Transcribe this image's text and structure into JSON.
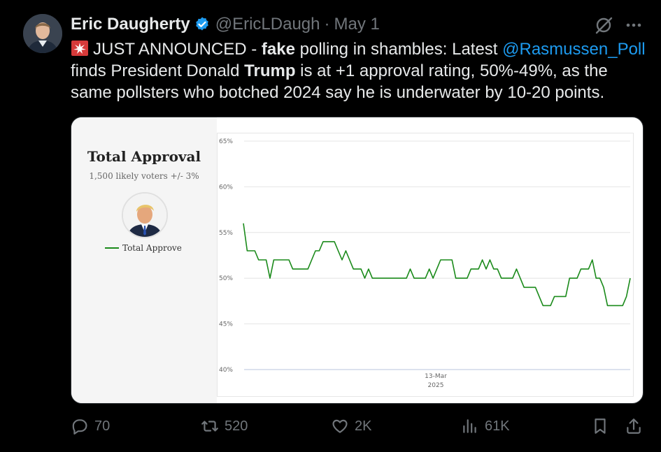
{
  "tweet": {
    "author_name": "Eric Daugherty",
    "handle": "@EricLDaugh",
    "separator": "·",
    "date": "May 1",
    "text_parts": {
      "intro": "JUST ANNOUNCED - ",
      "bold1": "fake",
      "mid1": " polling in shambles: Latest ",
      "mention": "@Rasmussen_Poll",
      "mid2": " finds President Donald ",
      "bold2": "Trump",
      "outro": " is at +1 approval rating, 50%-49%, as the same pollsters who botched 2024 say he is underwater by 10-20 points."
    },
    "icons": {
      "siren": "police-light-icon",
      "verified": "verified-badge-icon",
      "grok": "grok-icon",
      "more": "more-icon"
    }
  },
  "card": {
    "title": "Total Approval",
    "subtitle": "1,500 likely voters +/- 3%",
    "legend_label": "Total Approve"
  },
  "chart_data": {
    "type": "line",
    "ylabel": "",
    "xlabel": "",
    "ylim": [
      40,
      65
    ],
    "yticks": [
      "65%",
      "60%",
      "55%",
      "50%",
      "45%",
      "40%"
    ],
    "x_tick_label": "13-Mar",
    "x_tick_sublabel": "2025",
    "grid": true,
    "series": [
      {
        "name": "Total Approve",
        "color": "#1a8a1a",
        "values": [
          56,
          53,
          53,
          53,
          52,
          52,
          52,
          50,
          52,
          52,
          52,
          52,
          52,
          51,
          51,
          51,
          51,
          51,
          52,
          53,
          53,
          54,
          54,
          54,
          54,
          53,
          52,
          53,
          52,
          51,
          51,
          51,
          50,
          51,
          50,
          50,
          50,
          50,
          50,
          50,
          50,
          50,
          50,
          50,
          51,
          50,
          50,
          50,
          50,
          51,
          50,
          51,
          52,
          52,
          52,
          52,
          50,
          50,
          50,
          50,
          51,
          51,
          51,
          52,
          51,
          52,
          51,
          51,
          50,
          50,
          50,
          50,
          51,
          50,
          49,
          49,
          49,
          49,
          48,
          47,
          47,
          47,
          48,
          48,
          48,
          48,
          50,
          50,
          50,
          51,
          51,
          51,
          52,
          50,
          50,
          49,
          47,
          47,
          47,
          47,
          47,
          48,
          50
        ]
      }
    ]
  },
  "actions": {
    "replies": "70",
    "reposts": "520",
    "likes": "2K",
    "views": "61K"
  }
}
